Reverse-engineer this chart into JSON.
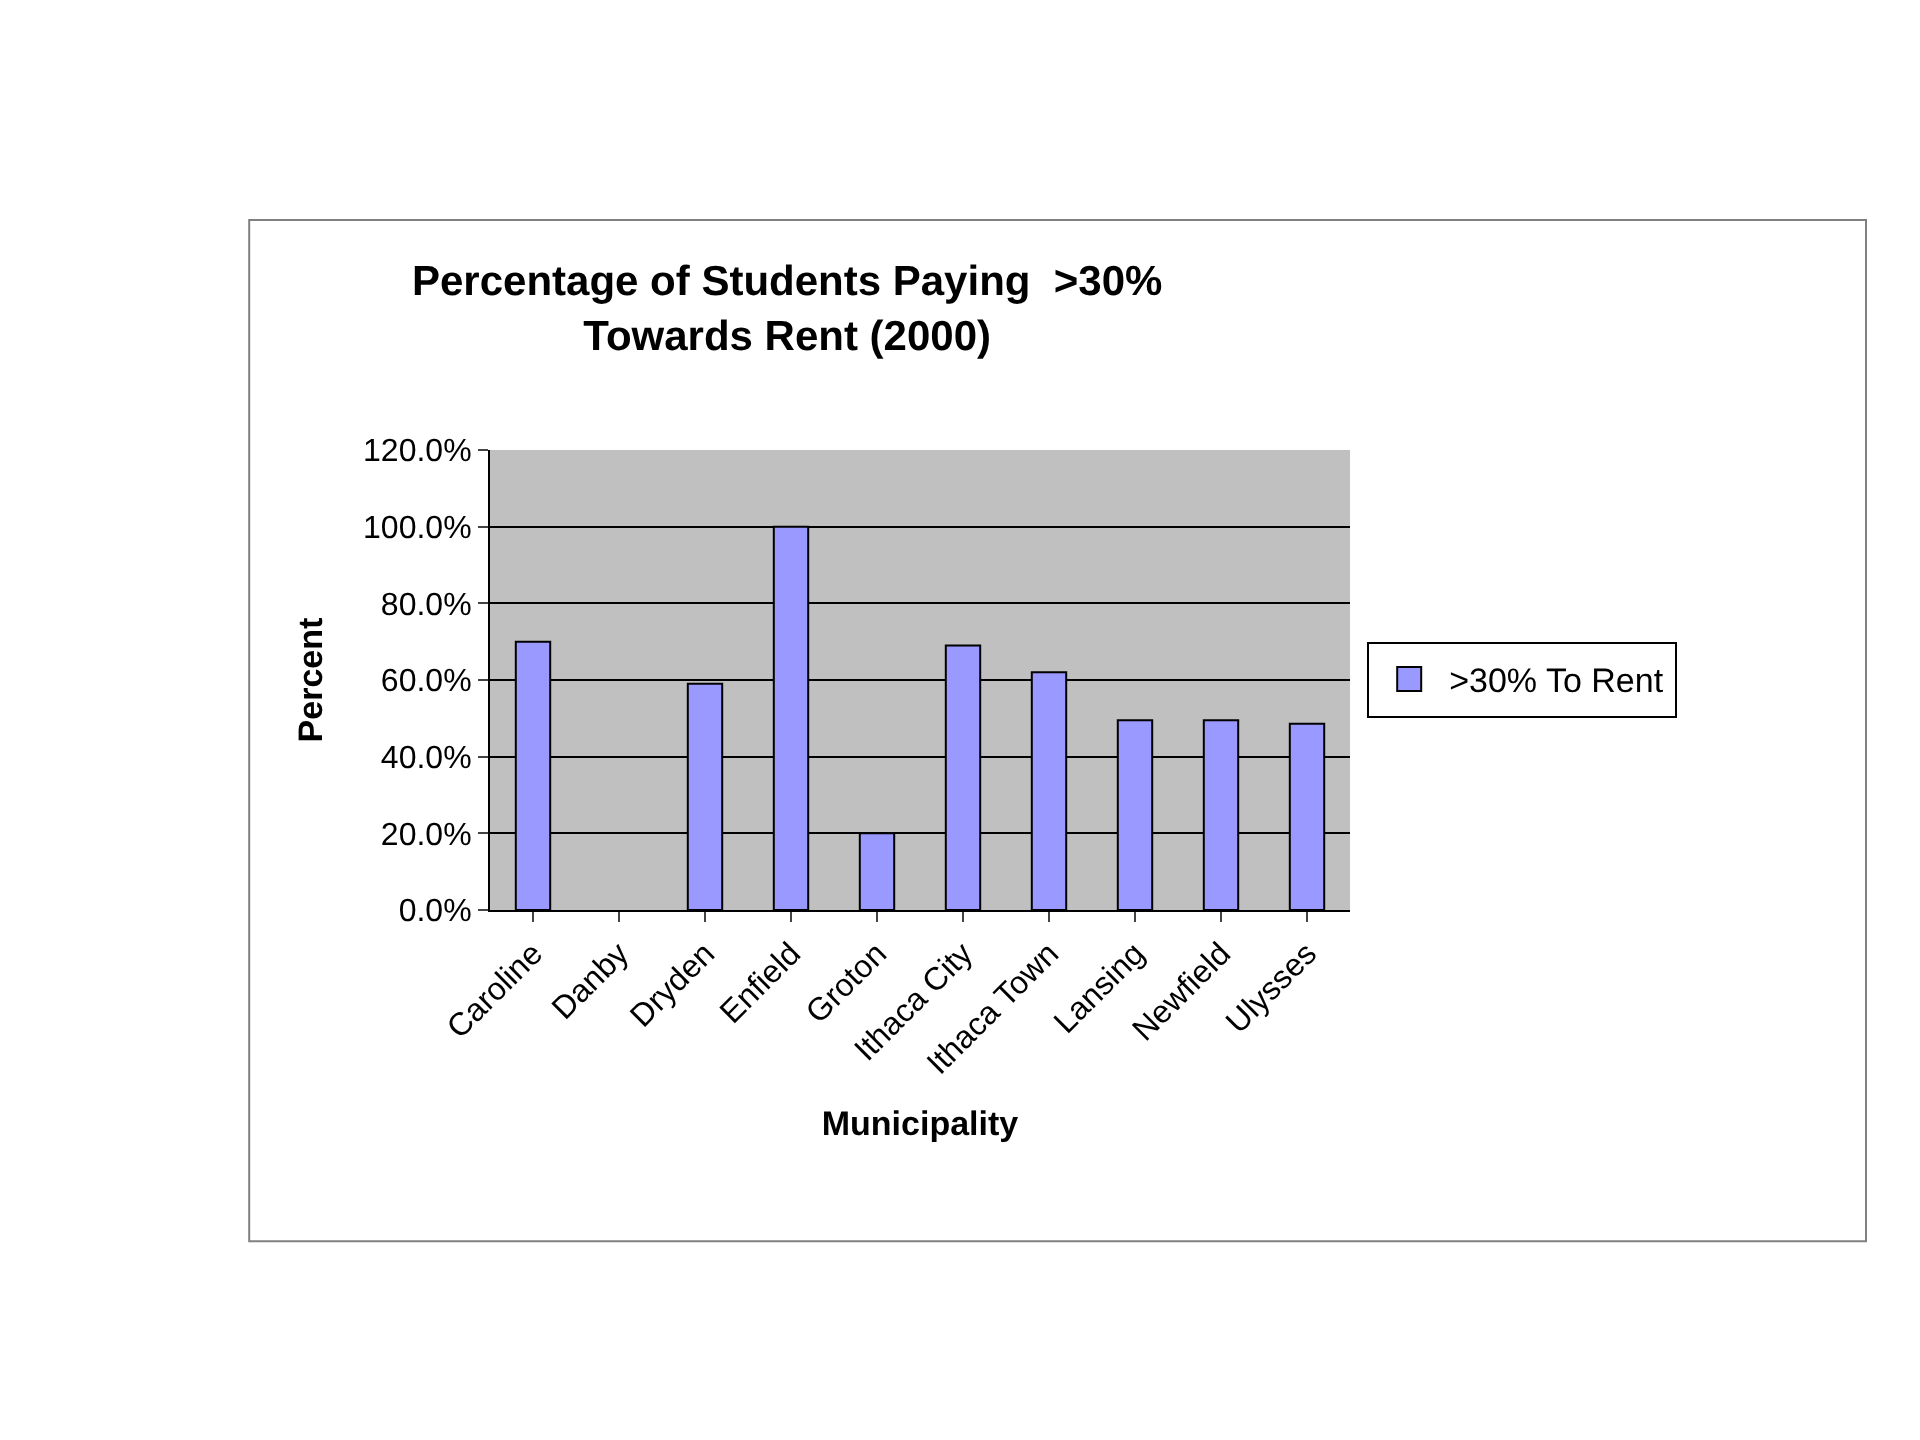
{
  "chart_data": {
    "type": "bar",
    "title": "Percentage of Students Paying  >30%\nTowards Rent (2000)",
    "xlabel": "Municipality",
    "ylabel": "Percent",
    "categories": [
      "Caroline",
      "Danby",
      "Dryden",
      "Enfield",
      "Groton",
      "Ithaca City",
      "Ithaca Town",
      "Lansing",
      "Newfield",
      "Ulysses"
    ],
    "series": [
      {
        "name": ">30% To Rent",
        "color": "#9999ff",
        "values": [
          70,
          null,
          59,
          100,
          20,
          69,
          62,
          49.5,
          49.5,
          48.6
        ]
      }
    ],
    "ylim": [
      0,
      120
    ],
    "yticks": [
      {
        "value": 0,
        "label": "0.0%"
      },
      {
        "value": 20,
        "label": "20.0%"
      },
      {
        "value": 40,
        "label": "40.0%"
      },
      {
        "value": 60,
        "label": "60.0%"
      },
      {
        "value": 80,
        "label": "80.0%"
      },
      {
        "value": 100,
        "label": "100.0%"
      },
      {
        "value": 120,
        "label": "120.0%"
      }
    ],
    "grid": "y",
    "legend": "right"
  }
}
